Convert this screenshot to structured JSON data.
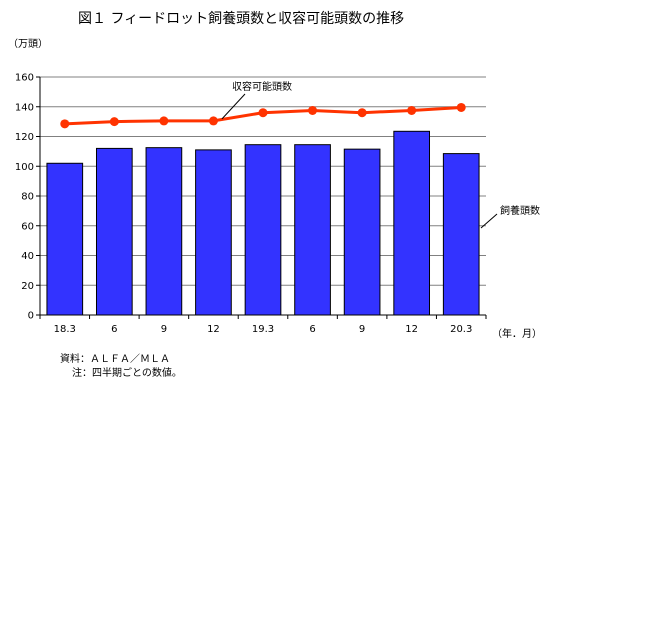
{
  "title": "図１ フィードロット飼養頭数と収容可能頭数の推移",
  "notes": {
    "source": "資料：ＡＬＦＡ／ＭＬＡ",
    "note": "注：四半期ごとの数値。"
  },
  "colors": {
    "bar": "#3333ff",
    "line": "#ff3300",
    "grid": "#808080"
  },
  "chart_data": {
    "type": "bar",
    "categories": [
      "18.3",
      "6",
      "9",
      "12",
      "19.3",
      "6",
      "9",
      "12",
      "20.3"
    ],
    "ylabel": "（万頭）",
    "xlabel": "（年．月）",
    "ylim": [
      0,
      160
    ],
    "yticks": [
      0,
      20,
      40,
      60,
      80,
      100,
      120,
      140,
      160
    ],
    "grid": true,
    "series": [
      {
        "name": "飼養頭数",
        "type": "bar",
        "values": [
          102,
          112,
          112.5,
          111,
          114.5,
          114.5,
          111.5,
          123.5,
          108.5
        ]
      },
      {
        "name": "収容可能頭数",
        "type": "line",
        "values": [
          128.5,
          130,
          130.5,
          130.5,
          136,
          137.5,
          136,
          137.5,
          139.5
        ]
      }
    ]
  }
}
